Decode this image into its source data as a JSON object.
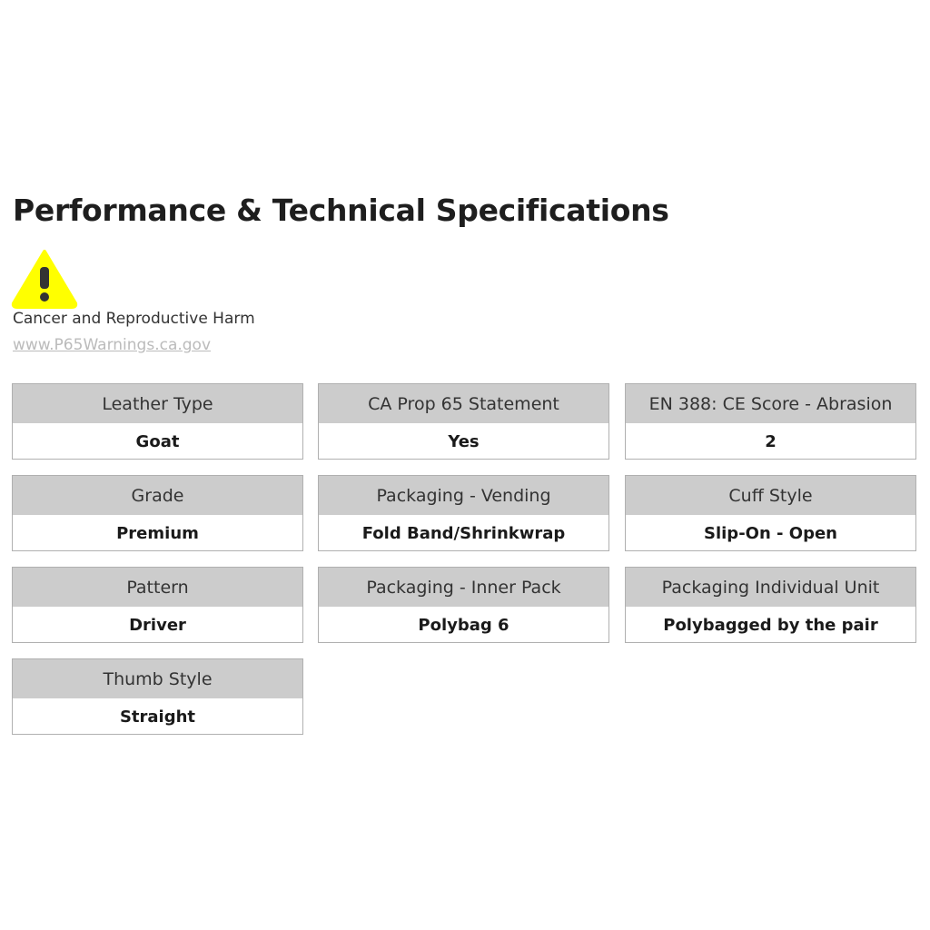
{
  "title": "Performance & Technical Specifications",
  "warning": {
    "icon": "warning-triangle-icon",
    "icon_color": "#ffff00",
    "text": "Cancer and Reproductive Harm",
    "link": "www.P65Warnings.ca.gov"
  },
  "specs": [
    {
      "label": "Leather Type",
      "value": "Goat"
    },
    {
      "label": "CA Prop 65 Statement",
      "value": "Yes"
    },
    {
      "label": "EN 388: CE Score - Abrasion",
      "value": "2"
    },
    {
      "label": "Grade",
      "value": "Premium"
    },
    {
      "label": "Packaging - Vending",
      "value": "Fold Band/Shrinkwrap"
    },
    {
      "label": "Cuff Style",
      "value": "Slip-On - Open"
    },
    {
      "label": "Pattern",
      "value": "Driver"
    },
    {
      "label": "Packaging - Inner Pack",
      "value": "Polybag 6"
    },
    {
      "label": "Packaging Individual Unit",
      "value": "Polybagged by the pair"
    },
    {
      "label": "Thumb Style",
      "value": "Straight"
    }
  ]
}
